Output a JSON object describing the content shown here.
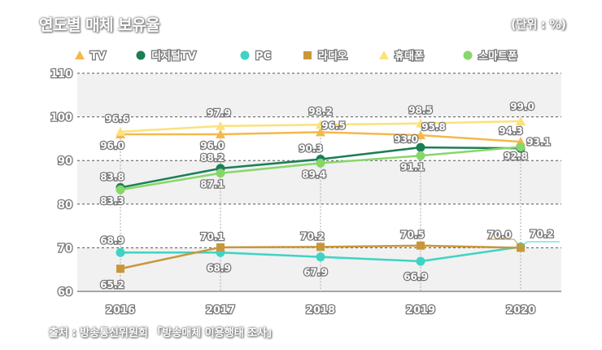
{
  "title": "연도별 매체 보유율",
  "unit": "(단위 : %)",
  "source": "출처 : 방송통신위원회 「방송매체 이용행태 조사」",
  "chart_data": {
    "type": "line",
    "categories": [
      "2016",
      "2017",
      "2018",
      "2019",
      "2020"
    ],
    "ylim": [
      60,
      110
    ],
    "yticks": [
      "60",
      "70",
      "80",
      "90",
      "100",
      "110"
    ],
    "grid": true,
    "legend": "top",
    "series": [
      {
        "name": "TV",
        "color": "#f5b84c",
        "marker": "triangle",
        "values": [
          96.0,
          96.0,
          96.5,
          95.8,
          94.3
        ],
        "labels": [
          "96.0",
          "96.0",
          "96.5",
          "95.8",
          "94.3"
        ]
      },
      {
        "name": "디지털TV",
        "color": "#1b7f56",
        "marker": "circle",
        "values": [
          83.8,
          88.2,
          90.3,
          93.0,
          92.8
        ],
        "labels": [
          "83.8",
          "88.2",
          "90.3",
          "93.0",
          "92.8"
        ]
      },
      {
        "name": "PC",
        "color": "#3fd3c4",
        "marker": "circle",
        "values": [
          68.9,
          68.9,
          67.9,
          66.9,
          70.2
        ],
        "labels": [
          "68.9",
          "68.9",
          "67.9",
          "66.9",
          "70.2"
        ]
      },
      {
        "name": "라디오",
        "color": "#c9973a",
        "marker": "square",
        "values": [
          65.2,
          70.1,
          70.2,
          70.5,
          70.0
        ],
        "labels": [
          "65.2",
          "70.1",
          "70.2",
          "70.5",
          "70.0"
        ]
      },
      {
        "name": "휴대폰",
        "color": "#fbe27a",
        "marker": "triangle",
        "values": [
          96.6,
          97.9,
          98.2,
          98.5,
          99.0
        ],
        "labels": [
          "96.6",
          "97.9",
          "98.2",
          "98.5",
          "99.0"
        ]
      },
      {
        "name": "스마트폰",
        "color": "#88d66a",
        "marker": "circle",
        "values": [
          83.3,
          87.1,
          89.4,
          91.1,
          93.1
        ],
        "labels": [
          "83.3",
          "87.1",
          "89.4",
          "91.1",
          "93.1"
        ]
      }
    ]
  }
}
